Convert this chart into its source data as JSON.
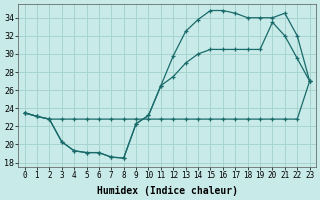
{
  "xlabel": "Humidex (Indice chaleur)",
  "background_color": "#c8eae8",
  "grid_color": "#a8d4d0",
  "line_color": "#1a6b6b",
  "xlim": [
    -0.5,
    23.5
  ],
  "ylim": [
    17.5,
    35.5
  ],
  "xticks": [
    0,
    1,
    2,
    3,
    4,
    5,
    6,
    7,
    8,
    9,
    10,
    11,
    12,
    13,
    14,
    15,
    16,
    17,
    18,
    19,
    20,
    21,
    22,
    23
  ],
  "yticks": [
    18,
    20,
    22,
    24,
    26,
    28,
    30,
    32,
    34
  ],
  "line1_x": [
    0,
    1,
    2,
    3,
    4,
    5,
    6,
    7,
    8,
    9,
    10,
    11,
    12,
    13,
    14,
    15,
    16,
    17,
    18,
    19,
    20,
    21,
    22,
    23
  ],
  "line1_y": [
    23.5,
    23.1,
    22.8,
    22.8,
    22.8,
    22.8,
    22.8,
    22.8,
    22.8,
    22.8,
    22.8,
    22.8,
    22.8,
    22.8,
    22.8,
    22.8,
    22.8,
    22.8,
    22.8,
    22.8,
    22.8,
    22.8,
    22.8,
    27.0
  ],
  "line2_x": [
    0,
    1,
    2,
    3,
    4,
    5,
    6,
    7,
    8,
    9,
    10,
    11,
    12,
    13,
    14,
    15,
    16,
    17,
    18,
    19,
    20,
    21,
    22,
    23
  ],
  "line2_y": [
    23.5,
    23.1,
    22.8,
    20.3,
    19.3,
    19.1,
    19.1,
    18.6,
    18.5,
    22.3,
    23.2,
    26.5,
    29.8,
    32.5,
    33.8,
    34.8,
    34.8,
    34.5,
    34.0,
    34.0,
    34.0,
    34.5,
    32.0,
    27.0
  ],
  "line3_x": [
    0,
    1,
    2,
    3,
    4,
    5,
    6,
    7,
    8,
    9,
    10,
    11,
    12,
    13,
    14,
    15,
    16,
    17,
    18,
    19,
    20,
    21,
    22,
    23
  ],
  "line3_y": [
    23.5,
    23.1,
    22.8,
    20.3,
    19.3,
    19.1,
    19.1,
    18.6,
    18.5,
    22.3,
    23.2,
    26.5,
    27.5,
    29.0,
    30.0,
    30.5,
    30.5,
    30.5,
    30.5,
    30.5,
    33.5,
    32.0,
    29.5,
    27.0
  ]
}
